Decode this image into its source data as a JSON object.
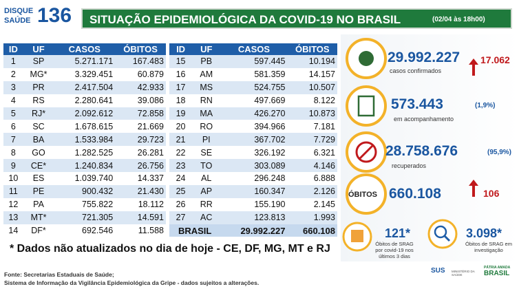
{
  "header": {
    "logo_top": "DISQUE",
    "logo_bottom": "SAÚDE",
    "logo_number": "136",
    "title": "SITUAÇÃO EPIDEMIOLÓGICA DA COVID-19 NO BRASIL",
    "timestamp": "(02/04 às 18h00)"
  },
  "table": {
    "columns": [
      "ID",
      "UF",
      "CASOS",
      "ÓBITOS"
    ],
    "rows": [
      [
        "1",
        "SP",
        "5.271.171",
        "167.483"
      ],
      [
        "2",
        "MG*",
        "3.329.451",
        "60.879"
      ],
      [
        "3",
        "PR",
        "2.417.504",
        "42.933"
      ],
      [
        "4",
        "RS",
        "2.280.641",
        "39.086"
      ],
      [
        "5",
        "RJ*",
        "2.092.612",
        "72.858"
      ],
      [
        "6",
        "SC",
        "1.678.615",
        "21.669"
      ],
      [
        "7",
        "BA",
        "1.533.984",
        "29.723"
      ],
      [
        "8",
        "GO",
        "1.282.525",
        "26.281"
      ],
      [
        "9",
        "CE*",
        "1.240.834",
        "26.756"
      ],
      [
        "10",
        "ES",
        "1.039.740",
        "14.337"
      ],
      [
        "11",
        "PE",
        "900.432",
        "21.430"
      ],
      [
        "12",
        "PA",
        "755.822",
        "18.112"
      ],
      [
        "13",
        "MT*",
        "721.305",
        "14.591"
      ],
      [
        "14",
        "DF*",
        "692.546",
        "11.588"
      ],
      [
        "15",
        "PB",
        "597.445",
        "10.194"
      ],
      [
        "16",
        "AM",
        "581.359",
        "14.157"
      ],
      [
        "17",
        "MS",
        "524.755",
        "10.507"
      ],
      [
        "18",
        "RN",
        "497.669",
        "8.122"
      ],
      [
        "19",
        "MA",
        "426.270",
        "10.873"
      ],
      [
        "20",
        "RO",
        "394.966",
        "7.181"
      ],
      [
        "21",
        "PI",
        "367.702",
        "7.729"
      ],
      [
        "22",
        "SE",
        "326.192",
        "6.321"
      ],
      [
        "23",
        "TO",
        "303.089",
        "4.146"
      ],
      [
        "24",
        "AL",
        "296.248",
        "6.888"
      ],
      [
        "25",
        "AP",
        "160.347",
        "2.126"
      ],
      [
        "26",
        "RR",
        "155.190",
        "2.145"
      ],
      [
        "27",
        "AC",
        "123.813",
        "1.993"
      ]
    ],
    "total": [
      "BRASIL",
      "29.992.227",
      "660.108"
    ]
  },
  "stats": {
    "confirmed": {
      "value": "29.992.227",
      "label": "casos confirmados",
      "change": "17.062"
    },
    "monitoring": {
      "value": "573.443",
      "percent": "(1,9%)",
      "label": "em acompanhamento"
    },
    "recovered": {
      "value": "28.758.676",
      "percent": "(95,9%)",
      "label": "recuperados"
    },
    "deaths": {
      "badge": "ÓBITOS",
      "value": "660.108",
      "change": "106"
    },
    "srag_recent": {
      "value": "121*",
      "label": "Óbitos de SRAG por covid-19 nos últimos 3 dias"
    },
    "srag_investigation": {
      "value": "3.098*",
      "label": "Óbitos de SRAG em investigação"
    }
  },
  "footnote": "* Dados não atualizados no dia de hoje - CE, DF, MG, MT e RJ",
  "source": [
    "Fonte: Secretarias Estaduais de Saúde;",
    "Sistema de Informação da Vigilância Epidemiológica da Gripe - dados sujeitos a alterações."
  ],
  "logos": {
    "sus": "SUS",
    "ministry": "MINISTÉRIO DA SAÚDE",
    "slogan": "PÁTRIA AMADA",
    "country": "BRASIL"
  }
}
